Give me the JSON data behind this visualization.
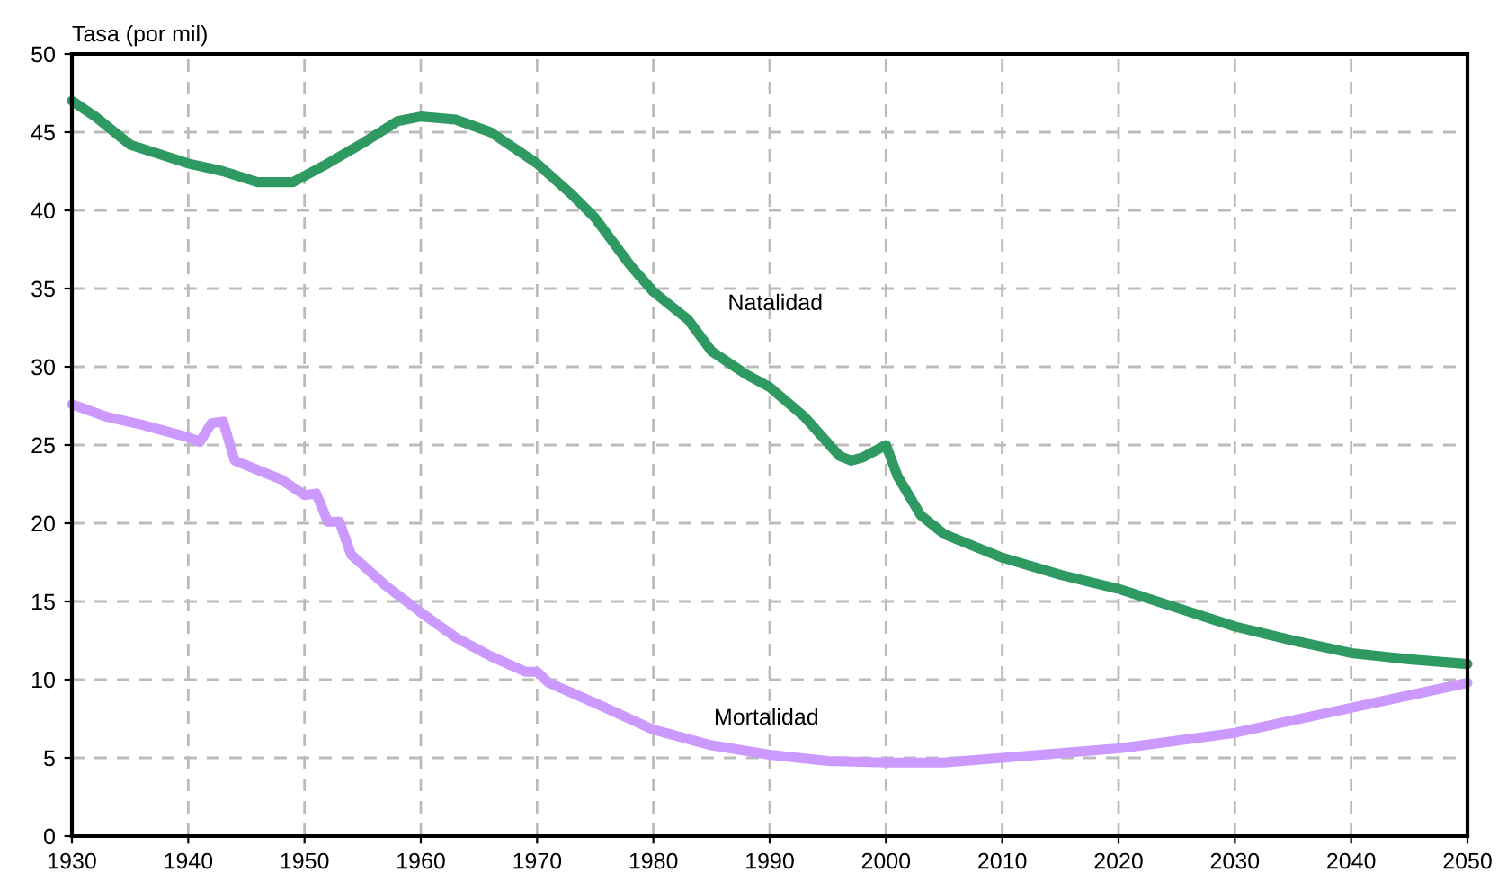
{
  "chart_data": {
    "type": "line",
    "ylabel": "Tasa (por mil)",
    "xlim": [
      1930,
      2050
    ],
    "xticks": [
      1930,
      1940,
      1950,
      1960,
      1970,
      1980,
      1990,
      2000,
      2010,
      2020,
      2030,
      2040,
      2050
    ],
    "ylim": [
      0,
      50
    ],
    "yticks": [
      0,
      5,
      10,
      15,
      20,
      25,
      30,
      35,
      40,
      45,
      50
    ],
    "grid": true,
    "line_style": "solid",
    "marker": "none",
    "series": [
      {
        "name": "Natalidad",
        "color": "#2e9a62",
        "x": [
          1930,
          1932,
          1935,
          1940,
          1943,
          1946,
          1949,
          1952,
          1955,
          1958,
          1960,
          1963,
          1966,
          1970,
          1973,
          1975,
          1978,
          1980,
          1983,
          1985,
          1988,
          1990,
          1993,
          1996,
          1997,
          1998,
          2000,
          2001,
          2003,
          2005,
          2010,
          2015,
          2020,
          2025,
          2030,
          2035,
          2040,
          2045,
          2050
        ],
        "values": [
          47,
          46,
          44.2,
          43,
          42.5,
          41.8,
          41.8,
          43,
          44.3,
          45.7,
          46,
          45.8,
          45,
          43,
          41,
          39.5,
          36.5,
          34.8,
          33,
          31,
          29.5,
          28.7,
          26.8,
          24.3,
          24,
          24.2,
          25,
          23,
          20.5,
          19.3,
          17.8,
          16.7,
          15.8,
          14.6,
          13.4,
          12.5,
          11.7,
          11.3,
          11
        ]
      },
      {
        "name": "Mortalidad",
        "color": "#cc99ff",
        "x": [
          1930,
          1933,
          1936,
          1940,
          1941,
          1942,
          1943,
          1944,
          1948,
          1950,
          1951,
          1952,
          1953,
          1954,
          1957,
          1960,
          1963,
          1966,
          1969,
          1970,
          1971,
          1975,
          1980,
          1985,
          1990,
          1995,
          2000,
          2005,
          2010,
          2020,
          2030,
          2040,
          2050
        ],
        "values": [
          27.6,
          26.8,
          26.3,
          25.5,
          25.2,
          26.4,
          26.5,
          24,
          22.8,
          21.8,
          21.9,
          20.1,
          20.1,
          18,
          16,
          14.3,
          12.7,
          11.5,
          10.5,
          10.5,
          9.8,
          8.5,
          6.8,
          5.8,
          5.2,
          4.8,
          4.7,
          4.7,
          5,
          5.6,
          6.6,
          8.2,
          9.8
        ]
      }
    ]
  }
}
